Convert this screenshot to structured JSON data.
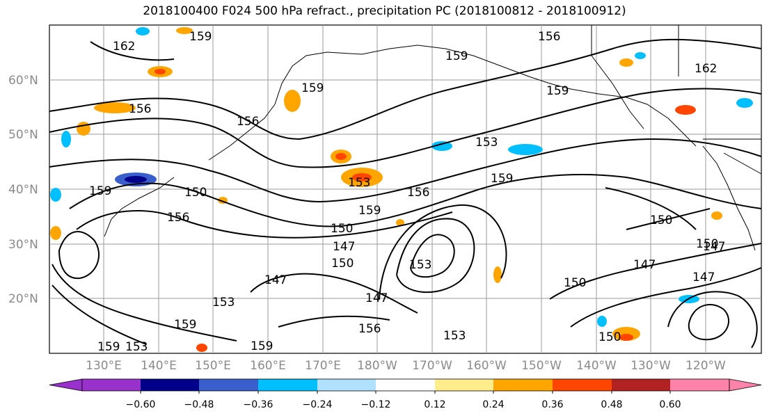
{
  "title": "2018100400 F024 500 hPa refract., precipitation PC (2018100812 - 2018100912)",
  "map": {
    "lat_labels": [
      "60°N",
      "50°N",
      "40°N",
      "30°N",
      "20°N"
    ],
    "lon_labels": [
      "130°E",
      "140°E",
      "150°E",
      "160°E",
      "170°E",
      "180°W",
      "170°W",
      "160°W",
      "150°W",
      "140°W",
      "130°W",
      "120°W"
    ],
    "contour_labels": [
      "159",
      "162",
      "156",
      "159",
      "162",
      "159",
      "156",
      "156",
      "159",
      "153",
      "150",
      "153",
      "159",
      "156",
      "150",
      "156",
      "159",
      "159",
      "150",
      "147",
      "150",
      "153",
      "147",
      "150",
      "147",
      "153",
      "147",
      "156",
      "153",
      "159",
      "153",
      "159",
      "150",
      "147",
      "147",
      "150",
      "159"
    ]
  },
  "colorbar": {
    "colors": [
      "#9932cc",
      "#00008b",
      "#3a5fcd",
      "#00bfff",
      "#b0e2ff",
      "#ffffff",
      "#ffec8b",
      "#ffa500",
      "#ff4500",
      "#b22222",
      "#ff82ab"
    ],
    "tick_labels": [
      "−0.60",
      "−0.48",
      "−0.36",
      "−0.24",
      "−0.12",
      "0.12",
      "0.24",
      "0.36",
      "0.48",
      "0.60"
    ]
  }
}
